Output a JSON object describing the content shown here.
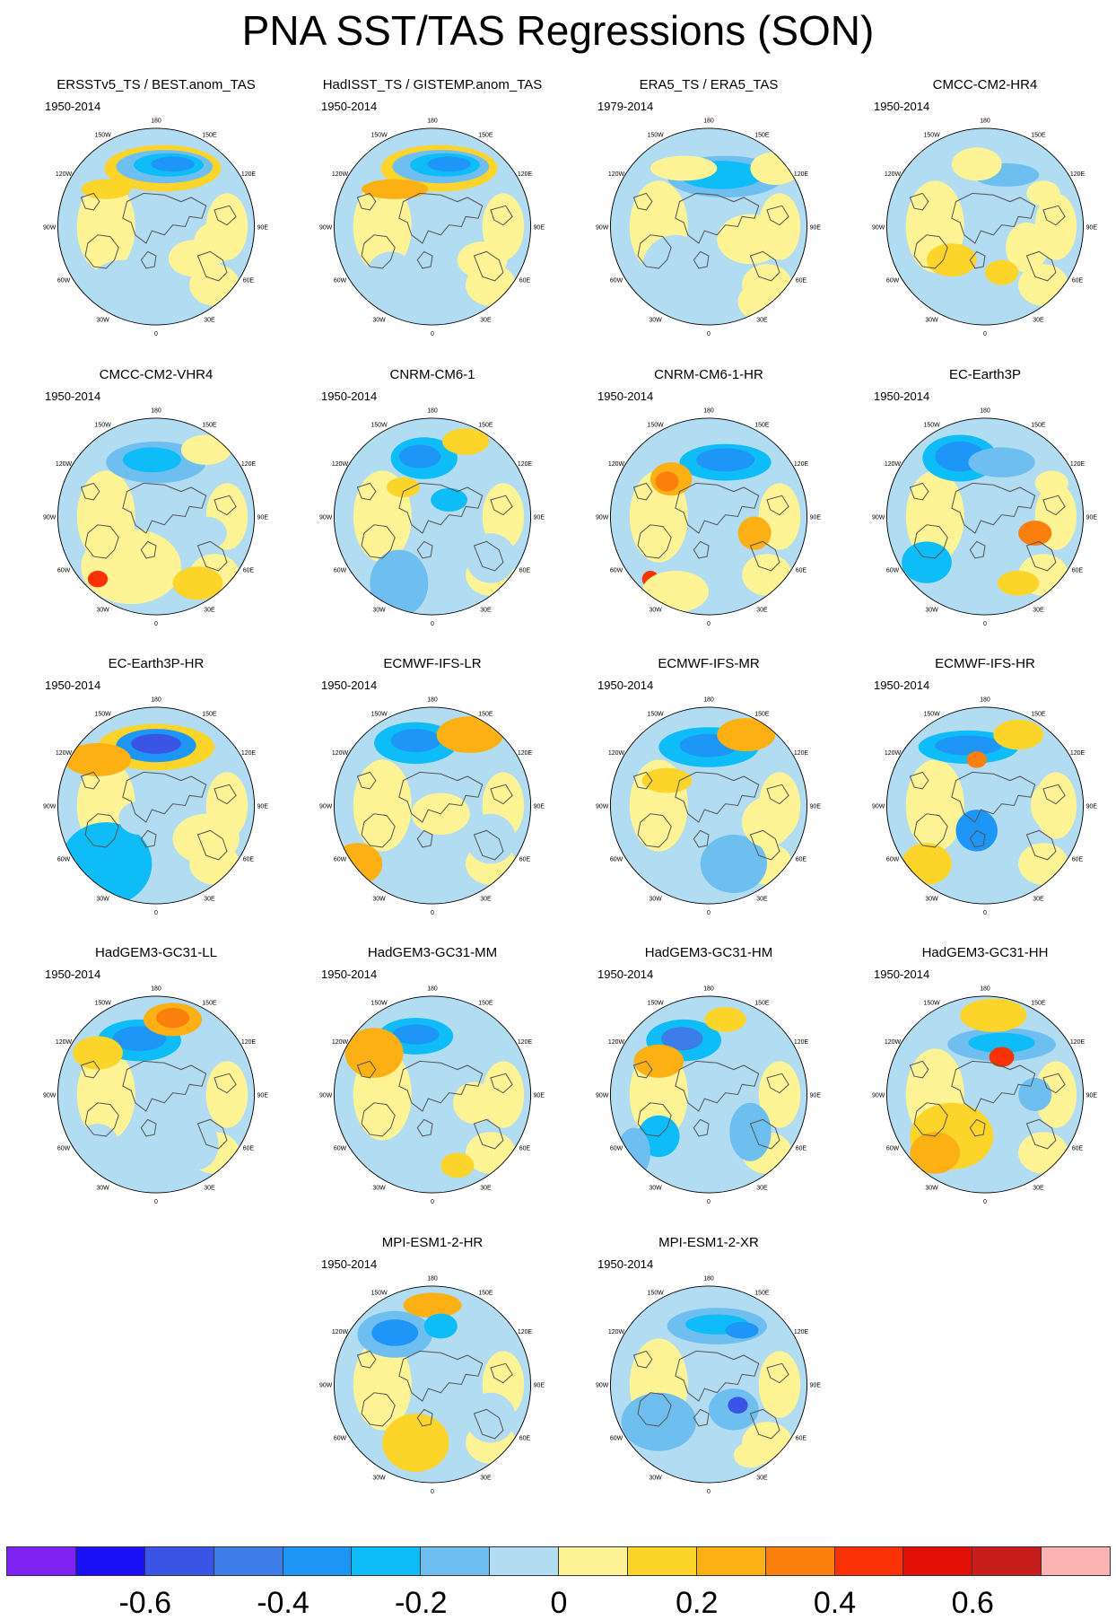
{
  "title": "PNA SST/TAS Regressions (SON)",
  "lon_labels": [
    "180",
    "150E",
    "120E",
    "90E",
    "60E",
    "30E",
    "0",
    "30W",
    "60W",
    "90W",
    "120W",
    "150W"
  ],
  "panels": [
    {
      "title": "ERSSTv5_TS / BEST.anom_TAS",
      "period": "1950-2014"
    },
    {
      "title": "HadISST_TS / GISTEMP.anom_TAS",
      "period": "1950-2014"
    },
    {
      "title": "ERA5_TS / ERA5_TAS",
      "period": "1979-2014"
    },
    {
      "title": "CMCC-CM2-HR4",
      "period": "1950-2014"
    },
    {
      "title": "CMCC-CM2-VHR4",
      "period": "1950-2014"
    },
    {
      "title": "CNRM-CM6-1",
      "period": "1950-2014"
    },
    {
      "title": "CNRM-CM6-1-HR",
      "period": "1950-2014"
    },
    {
      "title": "EC-Earth3P",
      "period": "1950-2014"
    },
    {
      "title": "EC-Earth3P-HR",
      "period": "1950-2014"
    },
    {
      "title": "ECMWF-IFS-LR",
      "period": "1950-2014"
    },
    {
      "title": "ECMWF-IFS-MR",
      "period": "1950-2014"
    },
    {
      "title": "ECMWF-IFS-HR",
      "period": "1950-2014"
    },
    {
      "title": "HadGEM3-GC31-LL",
      "period": "1950-2014"
    },
    {
      "title": "HadGEM3-GC31-MM",
      "period": "1950-2014"
    },
    {
      "title": "HadGEM3-GC31-HM",
      "period": "1950-2014"
    },
    {
      "title": "HadGEM3-GC31-HH",
      "period": "1950-2014"
    },
    {
      "title": "MPI-ESM1-2-HR",
      "period": "1950-2014"
    },
    {
      "title": "MPI-ESM1-2-XR",
      "period": "1950-2014"
    }
  ],
  "colorbar": {
    "colors": [
      "#7e22f2",
      "#1a10f5",
      "#3a55e6",
      "#3c7de8",
      "#1e96f8",
      "#0ebcf7",
      "#6ebff0",
      "#b2dcf2",
      "#fef496",
      "#fdd52a",
      "#fdb014",
      "#fb7f0c",
      "#fb3205",
      "#e20f06",
      "#c71d1d",
      "#fcb3b3"
    ],
    "tick_labels": [
      "-0.6",
      "-0.4",
      "-0.2",
      "0",
      "0.2",
      "0.4",
      "0.6"
    ]
  }
}
